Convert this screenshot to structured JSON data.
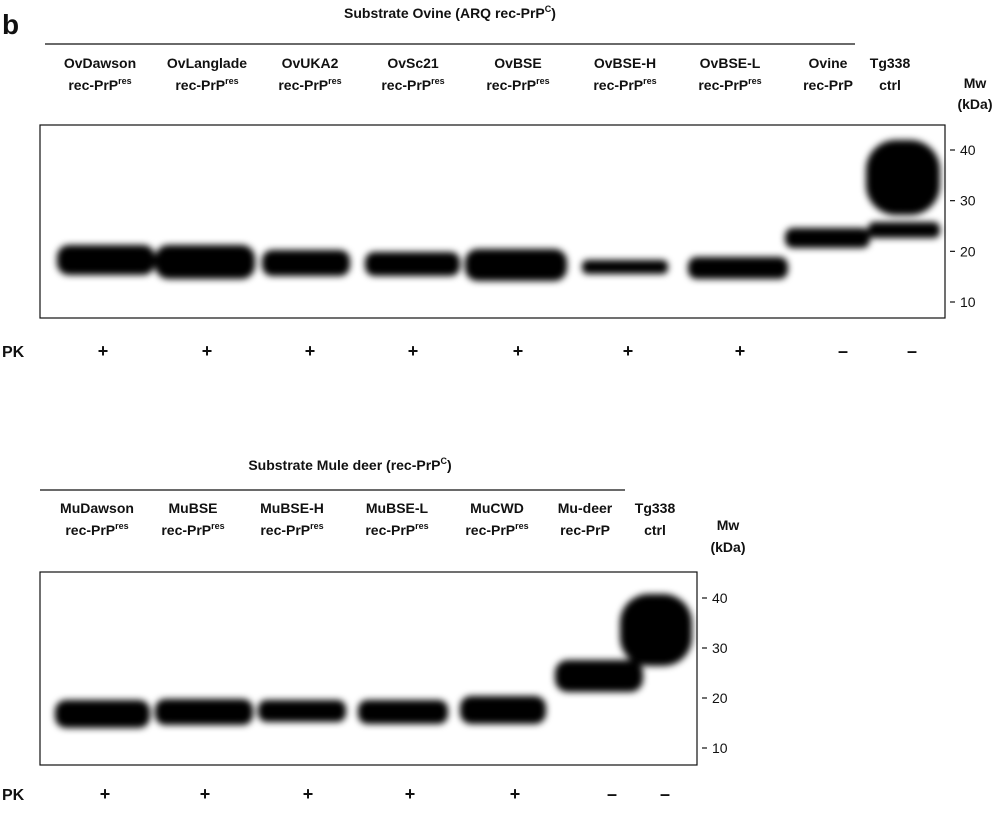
{
  "label": "b",
  "panels": [
    {
      "title": {
        "text": "Substrate Ovine (ARQ rec-PrP",
        "sup": "C",
        "tail": ")"
      },
      "lanes": [
        {
          "name": "OvDawson",
          "line2": "rec-PrP",
          "sup": "res",
          "pk": "+"
        },
        {
          "name": "OvLanglade",
          "line2": "rec-PrP",
          "sup": "res",
          "pk": "+"
        },
        {
          "name": "OvUKA2",
          "line2": "rec-PrP",
          "sup": "res",
          "pk": "+"
        },
        {
          "name": "OvSc21",
          "line2": "rec-PrP",
          "sup": "res",
          "pk": "+"
        },
        {
          "name": "OvBSE",
          "line2": "rec-PrP",
          "sup": "res",
          "pk": "+"
        },
        {
          "name": "OvBSE-H",
          "line2": "rec-PrP",
          "sup": "res",
          "pk": "+"
        },
        {
          "name": "OvBSE-L",
          "line2": "rec-PrP",
          "sup": "res",
          "pk": "+"
        },
        {
          "name": "Ovine",
          "line2": "rec-PrP",
          "pk": "–"
        },
        {
          "name": "Tg338",
          "line2": "ctrl",
          "pk": "–"
        }
      ],
      "mw_label": "Mw",
      "mw_unit": "(kDa)",
      "mw_ticks": [
        40,
        30,
        20,
        10
      ],
      "pk_label": "PK"
    },
    {
      "title": {
        "text": "Substrate Mule deer (rec-PrP",
        "sup": "C",
        "tail": ")"
      },
      "lanes": [
        {
          "name": "MuDawson",
          "line2": "rec-PrP",
          "sup": "res",
          "pk": "+"
        },
        {
          "name": "MuBSE",
          "line2": "rec-PrP",
          "sup": "res",
          "pk": "+"
        },
        {
          "name": "MuBSE-H",
          "line2": "rec-PrP",
          "sup": "res",
          "pk": "+"
        },
        {
          "name": "MuBSE-L",
          "line2": "rec-PrP",
          "sup": "res",
          "pk": "+"
        },
        {
          "name": "MuCWD",
          "line2": "rec-PrP",
          "sup": "res",
          "pk": "+"
        },
        {
          "name": "Mu-deer",
          "line2": "rec-PrP",
          "pk": "–"
        },
        {
          "name": "Tg338",
          "line2": "ctrl",
          "pk": "–"
        }
      ],
      "mw_label": "Mw",
      "mw_unit": "(kDa)",
      "mw_ticks": [
        40,
        30,
        20,
        10
      ],
      "pk_label": "PK"
    }
  ]
}
